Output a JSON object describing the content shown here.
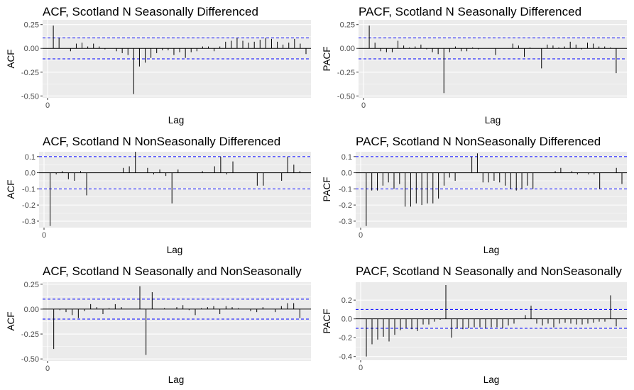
{
  "charts": [
    {
      "type": "bar",
      "title": "ACF, Scotland N Seasonally Differenced",
      "ylabel": "ACF",
      "xlabel": "Lag",
      "yticks": [
        0.25,
        0.0,
        -0.25,
        -0.5
      ],
      "ytick_labels": [
        "0.25",
        "0.00",
        "-0.25",
        "-0.50"
      ],
      "ylim": [
        -0.52,
        0.3
      ],
      "xtick_labels": [
        "0"
      ],
      "confidence_band": 0.11,
      "values": [
        0.24,
        0.11,
        0.0,
        -0.03,
        0.05,
        0.06,
        0.02,
        0.05,
        0.02,
        -0.01,
        0.0,
        -0.03,
        -0.05,
        -0.07,
        -0.48,
        -0.19,
        -0.15,
        -0.1,
        -0.05,
        -0.02,
        -0.02,
        -0.07,
        -0.04,
        -0.1,
        -0.04,
        -0.03,
        0.02,
        0.02,
        -0.03,
        0.02,
        0.07,
        0.08,
        0.11,
        0.08,
        0.06,
        0.07,
        0.09,
        0.11,
        0.1,
        0.07,
        0.04,
        0.06,
        0.1,
        0.05,
        -0.06
      ]
    },
    {
      "type": "bar",
      "title": "PACF, Scotland N Seasonally Differenced",
      "ylabel": "PACF",
      "xlabel": "Lag",
      "yticks": [
        0.25,
        0.0,
        -0.25,
        -0.5
      ],
      "ytick_labels": [
        "0.25",
        "0.00",
        "-0.25",
        "-0.50"
      ],
      "ylim": [
        -0.52,
        0.3
      ],
      "xtick_labels": [
        "0"
      ],
      "confidence_band": 0.11,
      "values": [
        0.24,
        0.06,
        -0.03,
        -0.04,
        -0.04,
        0.08,
        0.03,
        0.01,
        0.02,
        0.04,
        -0.01,
        -0.04,
        -0.06,
        -0.47,
        -0.04,
        0.02,
        -0.03,
        -0.03,
        0.01,
        -0.01,
        0.0,
        0.0,
        -0.07,
        0.0,
        0.0,
        0.05,
        0.03,
        -0.09,
        0.01,
        0.0,
        -0.21,
        0.04,
        0.03,
        0.01,
        0.02,
        0.07,
        0.04,
        -0.01,
        0.06,
        0.05,
        0.02,
        0.02,
        0.01,
        -0.26,
        0.0
      ]
    },
    {
      "type": "bar",
      "title": "ACF, Scotland N NonSeasonally Differenced",
      "ylabel": "ACF",
      "xlabel": "Lag",
      "yticks": [
        0.1,
        0.0,
        -0.1,
        -0.2,
        -0.3
      ],
      "ytick_labels": [
        "0.1",
        "0.0",
        "-0.1",
        "-0.2",
        "-0.3"
      ],
      "ylim": [
        -0.34,
        0.13
      ],
      "xtick_labels": [
        "0"
      ],
      "confidence_band": 0.1,
      "values": [
        -0.33,
        -0.01,
        0.01,
        -0.04,
        -0.05,
        0.01,
        -0.14,
        0.0,
        0.0,
        0.0,
        0.0,
        0.0,
        0.03,
        0.04,
        0.13,
        0.0,
        0.03,
        -0.01,
        0.02,
        -0.02,
        -0.19,
        0.02,
        0.0,
        0.0,
        0.0,
        0.01,
        0.0,
        0.04,
        0.1,
        -0.01,
        0.07,
        0.0,
        0.0,
        0.0,
        -0.08,
        -0.08,
        0.0,
        0.0,
        -0.05,
        0.1,
        0.05,
        0.01,
        0.0
      ]
    },
    {
      "type": "bar",
      "title": "PACF, Scotland N NonSeasonally Differenced",
      "ylabel": "PACF",
      "xlabel": "Lag",
      "yticks": [
        0.1,
        0.0,
        -0.1,
        -0.2,
        -0.3
      ],
      "ytick_labels": [
        "0.1",
        "0.0",
        "-0.1",
        "-0.2",
        "-0.3"
      ],
      "ylim": [
        -0.34,
        0.13
      ],
      "xtick_labels": [
        "0"
      ],
      "confidence_band": 0.1,
      "values": [
        -0.33,
        -0.11,
        -0.11,
        -0.08,
        -0.06,
        -0.1,
        -0.07,
        -0.21,
        -0.21,
        -0.19,
        -0.2,
        -0.19,
        -0.19,
        -0.16,
        -0.08,
        -0.03,
        -0.05,
        0.0,
        0.0,
        0.1,
        0.12,
        -0.06,
        -0.06,
        -0.05,
        -0.06,
        -0.08,
        -0.1,
        -0.11,
        -0.1,
        -0.08,
        -0.1,
        0.0,
        0.0,
        0.0,
        0.01,
        0.03,
        0.0,
        0.01,
        -0.01,
        0.0,
        -0.01,
        -0.01,
        -0.1,
        0.0,
        0.0,
        0.03,
        -0.07
      ]
    },
    {
      "type": "bar",
      "title": "ACF, Scotland N Seasonally and NonSeasonally",
      "ylabel": "ACF",
      "xlabel": "Lag",
      "yticks": [
        0.25,
        0.0,
        -0.25,
        -0.5
      ],
      "ytick_labels": [
        "0.25",
        "0.00",
        "-0.25",
        "-0.50"
      ],
      "ylim": [
        -0.52,
        0.27
      ],
      "xtick_labels": [
        "0"
      ],
      "confidence_band": 0.1,
      "values": [
        -0.4,
        -0.01,
        -0.03,
        -0.06,
        -0.09,
        -0.02,
        0.05,
        0.02,
        -0.05,
        0.01,
        0.05,
        0.02,
        0.0,
        0.0,
        0.23,
        -0.46,
        0.17,
        0.0,
        0.01,
        0.0,
        0.02,
        0.04,
        -0.01,
        -0.06,
        0.01,
        0.02,
        0.03,
        -0.05,
        0.03,
        0.02,
        0.01,
        0.0,
        -0.02,
        -0.03,
        0.02,
        0.0,
        -0.03,
        0.03,
        0.06,
        0.06,
        -0.09,
        0.0
      ]
    },
    {
      "type": "bar",
      "title": "PACF, Scotland N Seasonally and NonSeasonally",
      "ylabel": "PACF",
      "xlabel": "Lag",
      "yticks": [
        0.2,
        0.0,
        -0.2,
        -0.4
      ],
      "ytick_labels": [
        "0.2",
        "0.0",
        "-0.2",
        "-0.4"
      ],
      "ylim": [
        -0.44,
        0.39
      ],
      "xtick_labels": [
        "0"
      ],
      "confidence_band": 0.1,
      "values": [
        -0.4,
        -0.27,
        -0.22,
        -0.19,
        -0.24,
        -0.17,
        -0.12,
        -0.1,
        -0.11,
        -0.13,
        -0.06,
        -0.06,
        -0.03,
        -0.01,
        0.36,
        -0.2,
        -0.1,
        -0.11,
        -0.1,
        -0.09,
        -0.09,
        -0.1,
        -0.09,
        -0.09,
        -0.1,
        -0.07,
        -0.05,
        0.0,
        0.04,
        0.14,
        -0.05,
        -0.07,
        -0.05,
        -0.09,
        -0.05,
        -0.04,
        -0.05,
        -0.06,
        -0.06,
        -0.05,
        -0.04,
        -0.03,
        -0.03,
        0.25,
        -0.08,
        0.0
      ]
    }
  ],
  "colors": {
    "panel_background": "#ebebeb",
    "grid": "#ffffff",
    "bar": "#000000",
    "confidence_line": "#0000ff",
    "tick_text": "#4d4d4d"
  }
}
